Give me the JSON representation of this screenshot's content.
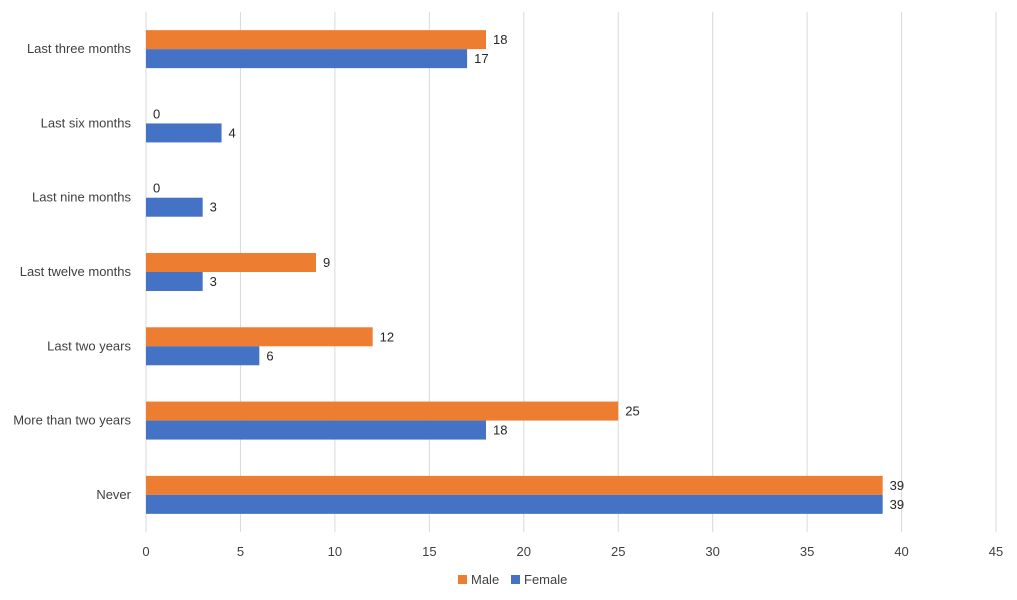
{
  "chart_data": {
    "type": "bar",
    "orientation": "horizontal",
    "categories": [
      "Last three months",
      "Last six months",
      "Last nine months",
      "Last twelve months",
      "Last two years",
      "More than two years",
      "Never"
    ],
    "series": [
      {
        "name": "Male",
        "values": [
          18,
          0,
          0,
          9,
          12,
          25,
          39
        ],
        "color": "#ED7D31"
      },
      {
        "name": "Female",
        "values": [
          17,
          4,
          3,
          3,
          6,
          18,
          39
        ],
        "color": "#4472C4"
      }
    ],
    "xlim": [
      0,
      45
    ],
    "xticks": [
      0,
      5,
      10,
      15,
      20,
      25,
      30,
      35,
      40,
      45
    ],
    "grid": true,
    "legend": "bottom-center",
    "data_labels": true
  }
}
